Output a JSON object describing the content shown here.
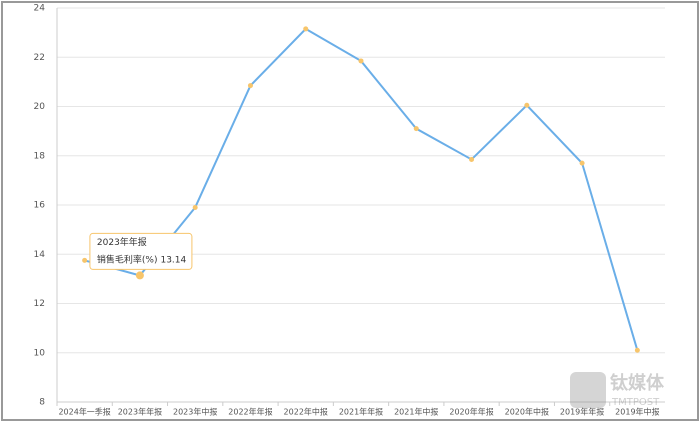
{
  "chart_data": {
    "type": "line",
    "categories": [
      "2024年一季报",
      "2023年年报",
      "2023年中报",
      "2022年年报",
      "2022年中报",
      "2021年年报",
      "2021年中报",
      "2020年年报",
      "2020年中报",
      "2019年年报",
      "2019年中报"
    ],
    "series": [
      {
        "name": "销售毛利率(%)",
        "color": "#6aaee8",
        "marker_color": "#f7c56b",
        "values": [
          13.75,
          13.14,
          15.9,
          20.85,
          23.15,
          21.85,
          19.1,
          17.85,
          20.05,
          17.7,
          10.1
        ]
      }
    ],
    "ylim": [
      8,
      24
    ],
    "yticks": [
      8,
      10,
      12,
      14,
      16,
      18,
      20,
      22,
      24
    ],
    "grid": true,
    "tooltip_index": 1
  },
  "watermark": {
    "text": "钛媒体",
    "subtext": "TMTPOST"
  }
}
